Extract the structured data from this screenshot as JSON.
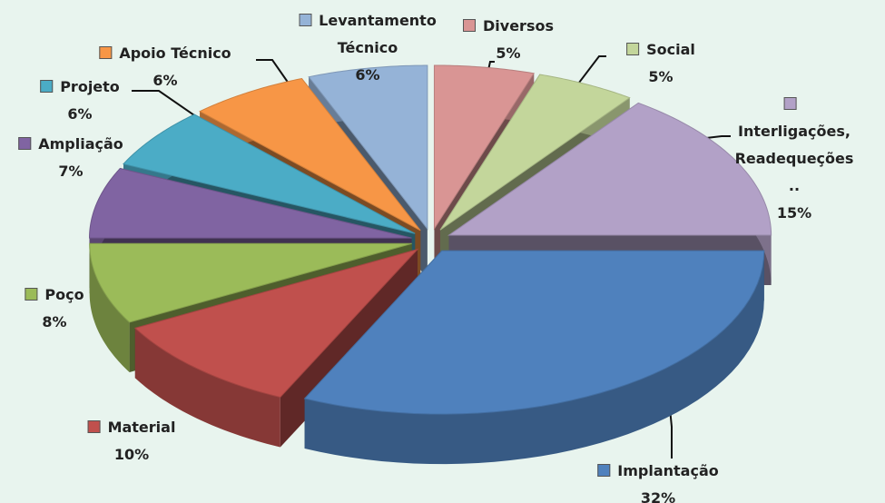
{
  "chart_data": {
    "type": "pie",
    "categories": [
      "Diversos",
      "Social",
      "Interligações, Readequeções ..",
      "Implantação",
      "Material",
      "Poço",
      "Ampliação",
      "Projeto",
      "Apoio Técnico",
      "Levantamento Técnico"
    ],
    "values": [
      5,
      5,
      15,
      32,
      10,
      8,
      7,
      6,
      6,
      6
    ],
    "value_labels": [
      "5%",
      "5%",
      "15%",
      "32%",
      "10%",
      "8%",
      "7%",
      "6%",
      "6%",
      "6%"
    ],
    "colors": [
      "#d99594",
      "#c3d69b",
      "#b2a1c7",
      "#4f81bd",
      "#c0504d",
      "#9bbb59",
      "#8064a2",
      "#4bacc6",
      "#f79646",
      "#95b3d7"
    ]
  }
}
